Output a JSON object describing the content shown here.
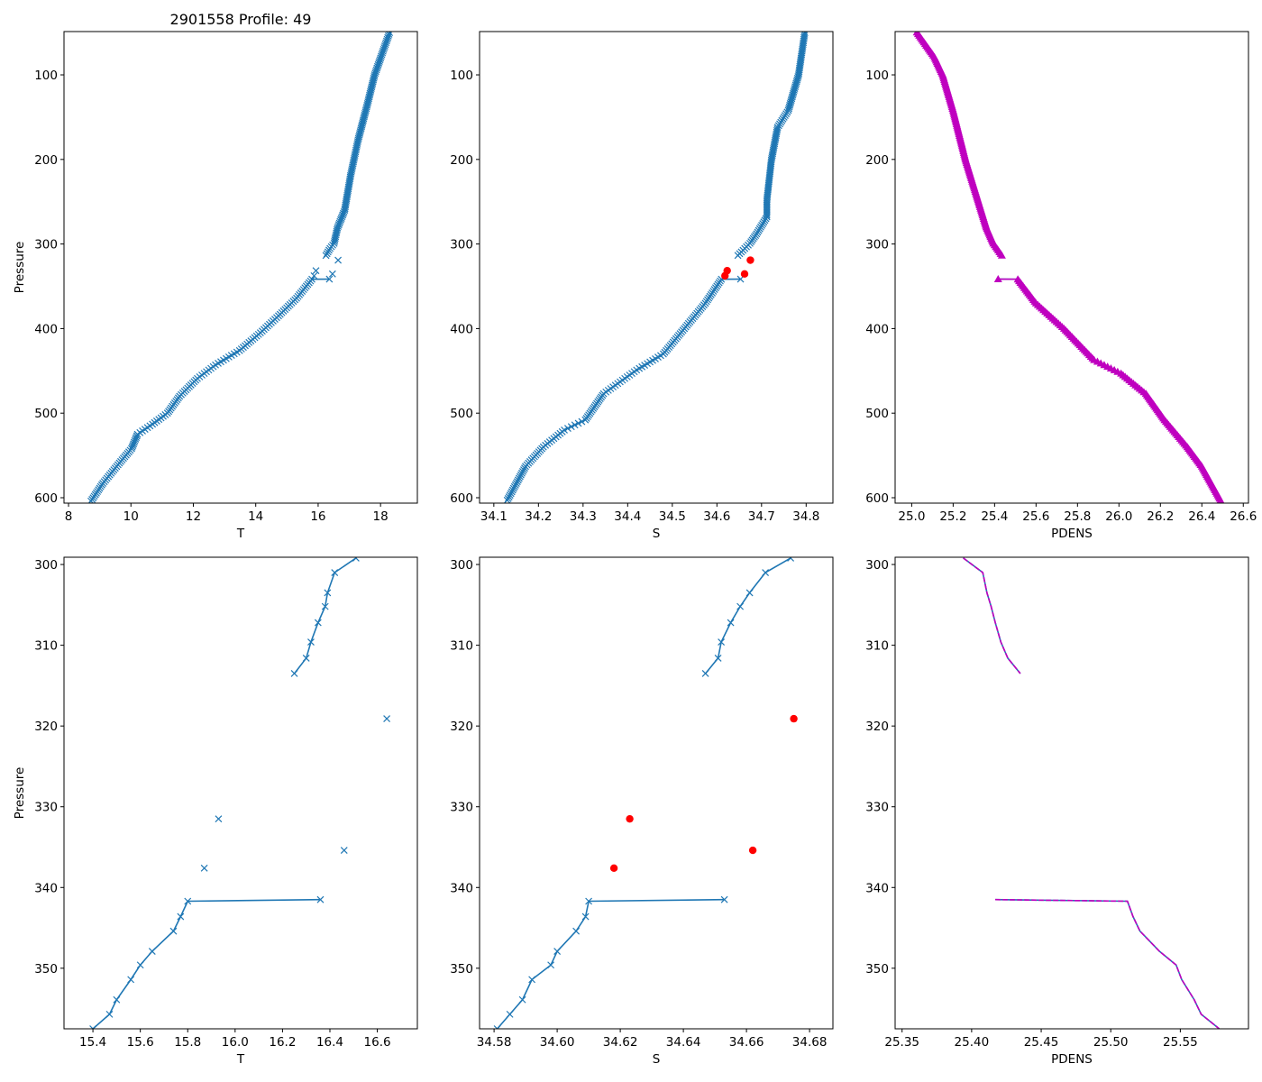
{
  "title": "2901558 Profile: 49",
  "colors": {
    "blue": "#1f77b4",
    "red": "#ff0000",
    "magenta": "#bf00bf"
  },
  "chart_data": [
    {
      "id": "top-temperature",
      "type": "line",
      "xlabel": "T",
      "ylabel": "Pressure",
      "xlim": [
        7.855,
        19.18
      ],
      "ylim": [
        606.4,
        48.8
      ],
      "xticks": [
        8,
        10,
        12,
        14,
        16,
        18
      ],
      "xtick_decimals": 0,
      "yticks": [
        100,
        200,
        300,
        400,
        500,
        600
      ],
      "ytick_decimals": 0,
      "dense_sampling_dbar": 2,
      "series": [
        {
          "name": "T good upper",
          "style": "line-x",
          "color": "blue",
          "anchors": [
            [
              50,
              18.29
            ],
            [
              100,
              17.81
            ],
            [
              136,
              17.57
            ],
            [
              177,
              17.28
            ],
            [
              219,
              17.04
            ],
            [
              260,
              16.85
            ],
            [
              281,
              16.62
            ],
            [
              299.2,
              16.51
            ],
            [
              305.2,
              16.38
            ],
            [
              313.5,
              16.25
            ]
          ]
        },
        {
          "name": "T good lower",
          "style": "line-x",
          "color": "blue",
          "anchors": [
            [
              341.5,
              16.36
            ],
            [
              341.7,
              15.8
            ],
            [
              364,
              15.31
            ],
            [
              385,
              14.73
            ],
            [
              405,
              14.15
            ],
            [
              426,
              13.48
            ],
            [
              443,
              12.71
            ],
            [
              459,
              12.13
            ],
            [
              480,
              11.56
            ],
            [
              500,
              11.17
            ],
            [
              513,
              10.69
            ],
            [
              525,
              10.21
            ],
            [
              542,
              10.02
            ],
            [
              559,
              9.63
            ],
            [
              583,
              9.1
            ],
            [
              604,
              8.72
            ]
          ]
        },
        {
          "name": "T flagged",
          "style": "x",
          "color": "blue",
          "points": [
            [
              319.1,
              16.64
            ],
            [
              331.5,
              15.93
            ],
            [
              335.4,
              16.46
            ],
            [
              337.6,
              15.87
            ]
          ]
        }
      ]
    },
    {
      "id": "top-salinity",
      "type": "line",
      "xlabel": "S",
      "ylabel": "",
      "xlim": [
        34.068,
        34.86
      ],
      "ylim": [
        606.4,
        48.8
      ],
      "xticks": [
        34.1,
        34.2,
        34.3,
        34.4,
        34.5,
        34.6,
        34.7,
        34.8
      ],
      "xtick_decimals": 1,
      "yticks": [
        100,
        200,
        300,
        400,
        500,
        600
      ],
      "ytick_decimals": 0,
      "dense_sampling_dbar": 2,
      "series": [
        {
          "name": "S good upper",
          "style": "line-x",
          "color": "blue",
          "anchors": [
            [
              50,
              34.797
            ],
            [
              100,
              34.783
            ],
            [
              142,
              34.76
            ],
            [
              162,
              34.736
            ],
            [
              201,
              34.722
            ],
            [
              248,
              34.712
            ],
            [
              268,
              34.712
            ],
            [
              288,
              34.689
            ],
            [
              299.2,
              34.674
            ],
            [
              313.5,
              34.647
            ]
          ]
        },
        {
          "name": "S good lower",
          "style": "line-x",
          "color": "blue",
          "anchors": [
            [
              341.5,
              34.653
            ],
            [
              341.7,
              34.61
            ],
            [
              370,
              34.574
            ],
            [
              400,
              34.527
            ],
            [
              430,
              34.48
            ],
            [
              449,
              34.42
            ],
            [
              477,
              34.346
            ],
            [
              508,
              34.305
            ],
            [
              520,
              34.258
            ],
            [
              540,
              34.211
            ],
            [
              563,
              34.171
            ],
            [
              603,
              34.13
            ]
          ]
        },
        {
          "name": "S flagged",
          "style": "dot",
          "color": "red",
          "points": [
            [
              319.1,
              34.675
            ],
            [
              331.5,
              34.623
            ],
            [
              335.4,
              34.662
            ],
            [
              337.6,
              34.618
            ]
          ]
        }
      ]
    },
    {
      "id": "top-density",
      "type": "line",
      "xlabel": "PDENS",
      "ylabel": "",
      "xlim": [
        24.92,
        26.625
      ],
      "ylim": [
        606.4,
        48.8
      ],
      "xticks": [
        25.0,
        25.2,
        25.4,
        25.6,
        25.8,
        26.0,
        26.2,
        26.4,
        26.6
      ],
      "xtick_decimals": 1,
      "yticks": [
        100,
        200,
        300,
        400,
        500,
        600
      ],
      "ytick_decimals": 0,
      "dense_sampling_dbar": 2,
      "series": [
        {
          "name": "PDENS upper",
          "style": "line-triangle",
          "color": "magenta",
          "anchors": [
            [
              49.6,
              25.025
            ],
            [
              79,
              25.11
            ],
            [
              100,
              25.15
            ],
            [
              142,
              25.2
            ],
            [
              200,
              25.26
            ],
            [
              240,
              25.31
            ],
            [
              280,
              25.36
            ],
            [
              299.2,
              25.394
            ],
            [
              313.5,
              25.435
            ]
          ]
        },
        {
          "name": "PDENS lower",
          "style": "line-triangle",
          "color": "magenta",
          "anchors": [
            [
              341.5,
              25.417
            ],
            [
              341.7,
              25.512
            ],
            [
              370,
              25.6
            ],
            [
              400,
              25.735
            ],
            [
              437,
              25.88
            ],
            [
              453,
              26.01
            ],
            [
              477,
              26.13
            ],
            [
              508,
              26.22
            ],
            [
              540,
              26.33
            ],
            [
              563,
              26.4
            ],
            [
              603,
              26.49
            ]
          ]
        }
      ]
    },
    {
      "id": "bottom-temperature",
      "type": "line",
      "xlabel": "T",
      "ylabel": "Pressure",
      "xlim": [
        15.278,
        16.769
      ],
      "ylim": [
        357.5,
        299.1
      ],
      "xticks": [
        15.4,
        15.6,
        15.8,
        16.0,
        16.2,
        16.4,
        16.6
      ],
      "xtick_decimals": 1,
      "yticks": [
        300,
        310,
        320,
        330,
        340,
        350
      ],
      "ytick_decimals": 0,
      "series": [
        {
          "name": "T good upper",
          "style": "line-x",
          "color": "blue",
          "points": [
            [
              299.2,
              16.51
            ],
            [
              301.0,
              16.42
            ],
            [
              303.5,
              16.39
            ],
            [
              305.2,
              16.38
            ],
            [
              307.2,
              16.35
            ],
            [
              309.6,
              16.32
            ],
            [
              311.6,
              16.3
            ],
            [
              313.5,
              16.25
            ]
          ]
        },
        {
          "name": "T good lower",
          "style": "line-x",
          "color": "blue",
          "points": [
            [
              341.5,
              16.36
            ],
            [
              341.7,
              15.8
            ],
            [
              343.6,
              15.77
            ],
            [
              345.4,
              15.74
            ],
            [
              347.9,
              15.65
            ],
            [
              349.6,
              15.6
            ],
            [
              351.4,
              15.56
            ],
            [
              353.9,
              15.5
            ],
            [
              355.7,
              15.47
            ],
            [
              357.5,
              15.4
            ]
          ]
        },
        {
          "name": "T flagged",
          "style": "x",
          "color": "blue",
          "points": [
            [
              319.1,
              16.64
            ],
            [
              331.5,
              15.93
            ],
            [
              335.4,
              16.46
            ],
            [
              337.6,
              15.87
            ]
          ]
        }
      ]
    },
    {
      "id": "bottom-salinity",
      "type": "line",
      "xlabel": "S",
      "ylabel": "",
      "xlim": [
        34.5754,
        34.6874
      ],
      "ylim": [
        357.5,
        299.1
      ],
      "xticks": [
        34.58,
        34.6,
        34.62,
        34.64,
        34.66,
        34.68
      ],
      "xtick_decimals": 2,
      "yticks": [
        300,
        310,
        320,
        330,
        340,
        350
      ],
      "ytick_decimals": 0,
      "series": [
        {
          "name": "S good upper",
          "style": "line-x",
          "color": "blue",
          "points": [
            [
              299.2,
              34.674
            ],
            [
              301.0,
              34.666
            ],
            [
              303.5,
              34.661
            ],
            [
              305.2,
              34.658
            ],
            [
              307.2,
              34.655
            ],
            [
              309.6,
              34.652
            ],
            [
              311.6,
              34.651
            ],
            [
              313.5,
              34.647
            ]
          ]
        },
        {
          "name": "S good lower",
          "style": "line-x",
          "color": "blue",
          "points": [
            [
              341.5,
              34.653
            ],
            [
              341.7,
              34.61
            ],
            [
              343.6,
              34.609
            ],
            [
              345.4,
              34.606
            ],
            [
              347.9,
              34.6
            ],
            [
              349.6,
              34.598
            ],
            [
              351.4,
              34.592
            ],
            [
              353.9,
              34.589
            ],
            [
              355.7,
              34.585
            ],
            [
              357.5,
              34.581
            ]
          ]
        },
        {
          "name": "S flagged",
          "style": "dot",
          "color": "red",
          "points": [
            [
              319.1,
              34.675
            ],
            [
              331.5,
              34.623
            ],
            [
              335.4,
              34.662
            ],
            [
              337.6,
              34.618
            ]
          ]
        }
      ]
    },
    {
      "id": "bottom-density",
      "type": "line",
      "xlabel": "PDENS",
      "ylabel": "",
      "xlim": [
        25.345,
        25.599
      ],
      "ylim": [
        357.5,
        299.1
      ],
      "xticks": [
        25.35,
        25.4,
        25.45,
        25.5,
        25.55
      ],
      "xtick_decimals": 2,
      "yticks": [
        300,
        310,
        320,
        330,
        340,
        350
      ],
      "ytick_decimals": 0,
      "series": [
        {
          "name": "PDENS upper",
          "style": "line-dashed",
          "color": "magenta",
          "points": [
            [
              299.2,
              25.394
            ],
            [
              301.0,
              25.408
            ],
            [
              303.5,
              25.411
            ],
            [
              305.2,
              25.414
            ],
            [
              307.2,
              25.417
            ],
            [
              309.6,
              25.421
            ],
            [
              311.6,
              25.426
            ],
            [
              313.5,
              25.435
            ]
          ]
        },
        {
          "name": "PDENS lower",
          "style": "line-dashed",
          "color": "magenta",
          "points": [
            [
              341.5,
              25.417
            ],
            [
              341.7,
              25.512
            ],
            [
              343.6,
              25.516
            ],
            [
              345.4,
              25.521
            ],
            [
              347.9,
              25.535
            ],
            [
              349.6,
              25.547
            ],
            [
              351.4,
              25.551
            ],
            [
              353.9,
              25.56
            ],
            [
              355.7,
              25.565
            ],
            [
              357.5,
              25.578
            ]
          ]
        }
      ]
    }
  ]
}
